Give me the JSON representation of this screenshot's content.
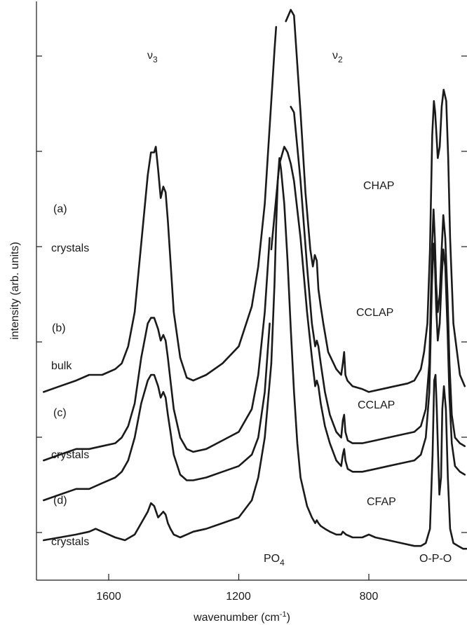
{
  "chart_data": {
    "type": "line",
    "xlabel": "wavenumber (cm-1)",
    "ylabel": "intensity (arb. units)",
    "xlim": [
      1800,
      500
    ],
    "x_reversed": true,
    "ylim": [
      0,
      1
    ],
    "x_ticks": [
      1600,
      1200,
      800
    ],
    "y_ticks_unlabeled": 6,
    "grid": false,
    "series": [
      {
        "name": "CHAP",
        "label": "(a)",
        "note": "crystals",
        "x": [
          1800,
          1750,
          1700,
          1660,
          1620,
          1580,
          1560,
          1540,
          1520,
          1500,
          1480,
          1470,
          1460,
          1455,
          1448,
          1440,
          1432,
          1425,
          1418,
          1410,
          1400,
          1380,
          1360,
          1340,
          1300,
          1250,
          1200,
          1160,
          1140,
          1120,
          1100,
          1090,
          1085
        ],
        "y": [
          0.33,
          0.34,
          0.35,
          0.36,
          0.36,
          0.37,
          0.38,
          0.41,
          0.47,
          0.59,
          0.71,
          0.75,
          0.75,
          0.76,
          0.72,
          0.67,
          0.69,
          0.68,
          0.63,
          0.56,
          0.47,
          0.39,
          0.355,
          0.35,
          0.36,
          0.38,
          0.41,
          0.48,
          0.55,
          0.66,
          0.84,
          0.93,
          0.97
        ]
      },
      {
        "name": "CCLAP",
        "label": "(b)",
        "note": "bulk",
        "x": [
          1800,
          1750,
          1700,
          1660,
          1620,
          1580,
          1560,
          1540,
          1520,
          1500,
          1480,
          1470,
          1460,
          1448,
          1440,
          1432,
          1425,
          1418,
          1410,
          1400,
          1380,
          1360,
          1340,
          1300,
          1250,
          1200,
          1160,
          1140,
          1120,
          1105
        ],
        "y": [
          0.21,
          0.22,
          0.23,
          0.23,
          0.235,
          0.24,
          0.25,
          0.27,
          0.31,
          0.39,
          0.45,
          0.46,
          0.46,
          0.44,
          0.42,
          0.43,
          0.42,
          0.39,
          0.35,
          0.3,
          0.25,
          0.23,
          0.225,
          0.23,
          0.245,
          0.26,
          0.3,
          0.36,
          0.47,
          0.6
        ]
      },
      {
        "name": "CCLAP",
        "label": "(c)",
        "note": "crystals",
        "x": [
          1800,
          1750,
          1700,
          1660,
          1620,
          1580,
          1560,
          1540,
          1520,
          1500,
          1480,
          1470,
          1460,
          1448,
          1440,
          1432,
          1425,
          1418,
          1410,
          1400,
          1380,
          1360,
          1340,
          1300,
          1250,
          1200,
          1160,
          1140,
          1120,
          1105
        ],
        "y": [
          0.14,
          0.15,
          0.16,
          0.16,
          0.17,
          0.18,
          0.19,
          0.21,
          0.25,
          0.31,
          0.35,
          0.36,
          0.36,
          0.34,
          0.32,
          0.33,
          0.32,
          0.29,
          0.26,
          0.22,
          0.185,
          0.175,
          0.175,
          0.18,
          0.19,
          0.2,
          0.22,
          0.25,
          0.33,
          0.45
        ]
      },
      {
        "name": "CFAP",
        "label": "(d)",
        "note": "crystals",
        "x": [
          1800,
          1750,
          1700,
          1660,
          1640,
          1620,
          1580,
          1550,
          1520,
          1500,
          1480,
          1470,
          1460,
          1448,
          1440,
          1432,
          1425,
          1418,
          1410,
          1400,
          1380,
          1360,
          1340,
          1300,
          1250,
          1200,
          1160,
          1140,
          1120,
          1100
        ],
        "y": [
          0.07,
          0.075,
          0.08,
          0.085,
          0.09,
          0.085,
          0.075,
          0.07,
          0.08,
          0.1,
          0.12,
          0.135,
          0.13,
          0.11,
          0.115,
          0.12,
          0.115,
          0.1,
          0.09,
          0.08,
          0.075,
          0.08,
          0.085,
          0.09,
          0.1,
          0.11,
          0.14,
          0.18,
          0.25,
          0.38
        ]
      },
      {
        "name": "PO4 band (a)",
        "x": [
          1055,
          1040,
          1030,
          1010,
          995,
          980,
          972,
          966,
          960,
          955,
          948,
          940,
          925,
          900,
          885,
          880,
          876,
          872,
          866,
          850,
          820,
          800,
          760,
          720,
          680,
          660,
          650,
          640,
          630,
          620,
          612,
          605,
          600,
          596,
          592,
          588,
          582,
          576,
          570,
          562,
          556,
          550,
          540,
          520,
          505
        ],
        "y": [
          0.98,
          1.0,
          0.99,
          0.82,
          0.68,
          0.58,
          0.55,
          0.57,
          0.56,
          0.51,
          0.48,
          0.45,
          0.4,
          0.37,
          0.36,
          0.38,
          0.4,
          0.36,
          0.35,
          0.34,
          0.335,
          0.33,
          0.335,
          0.34,
          0.345,
          0.35,
          0.36,
          0.37,
          0.4,
          0.45,
          0.58,
          0.78,
          0.84,
          0.82,
          0.78,
          0.74,
          0.76,
          0.83,
          0.86,
          0.84,
          0.74,
          0.6,
          0.45,
          0.36,
          0.34
        ]
      },
      {
        "name": "PO4 band (b)",
        "x": [
          1040,
          1030,
          1010,
          990,
          975,
          965,
          960,
          955,
          948,
          935,
          920,
          900,
          885,
          880,
          876,
          872,
          865,
          850,
          820,
          780,
          740,
          700,
          660,
          640,
          625,
          614,
          606,
          601,
          597,
          593,
          588,
          582,
          576,
          571,
          565,
          558,
          552,
          545,
          535,
          520,
          505
        ],
        "y": [
          0.83,
          0.82,
          0.7,
          0.55,
          0.45,
          0.41,
          0.42,
          0.41,
          0.38,
          0.33,
          0.29,
          0.26,
          0.25,
          0.28,
          0.29,
          0.26,
          0.245,
          0.24,
          0.24,
          0.245,
          0.25,
          0.255,
          0.26,
          0.27,
          0.3,
          0.38,
          0.58,
          0.65,
          0.6,
          0.52,
          0.47,
          0.5,
          0.58,
          0.64,
          0.6,
          0.5,
          0.38,
          0.29,
          0.25,
          0.24,
          0.235
        ]
      },
      {
        "name": "PO4 band (c)",
        "x": [
          1100,
          1090,
          1080,
          1075,
          1070,
          1060,
          1050,
          1040,
          1030,
          1010,
          990,
          975,
          965,
          960,
          955,
          948,
          935,
          920,
          900,
          885,
          880,
          876,
          872,
          865,
          850,
          820,
          780,
          740,
          700,
          660,
          640,
          625,
          614,
          606,
          601,
          597,
          593,
          588,
          582,
          576,
          571,
          565,
          558,
          552,
          545,
          535,
          520,
          505
        ],
        "y": [
          0.58,
          0.64,
          0.7,
          0.73,
          0.74,
          0.76,
          0.75,
          0.73,
          0.7,
          0.6,
          0.47,
          0.39,
          0.34,
          0.35,
          0.34,
          0.31,
          0.27,
          0.24,
          0.21,
          0.2,
          0.22,
          0.23,
          0.21,
          0.195,
          0.19,
          0.19,
          0.195,
          0.2,
          0.205,
          0.21,
          0.22,
          0.25,
          0.33,
          0.52,
          0.59,
          0.56,
          0.48,
          0.42,
          0.45,
          0.53,
          0.58,
          0.55,
          0.44,
          0.32,
          0.24,
          0.2,
          0.19,
          0.185
        ]
      },
      {
        "name": "PO4 band (d)",
        "x": [
          1100,
          1090,
          1085,
          1080,
          1075,
          1070,
          1060,
          1050,
          1040,
          1030,
          1020,
          1010,
          990,
          975,
          965,
          960,
          955,
          948,
          935,
          920,
          900,
          885,
          880,
          870,
          850,
          820,
          800,
          780,
          740,
          700,
          660,
          640,
          625,
          612,
          604,
          599,
          595,
          591,
          587,
          583,
          578,
          574,
          569,
          563,
          557,
          550,
          540,
          525,
          510,
          500
        ],
        "y": [
          0.38,
          0.52,
          0.62,
          0.7,
          0.74,
          0.72,
          0.66,
          0.56,
          0.44,
          0.33,
          0.24,
          0.18,
          0.13,
          0.11,
          0.1,
          0.105,
          0.1,
          0.095,
          0.09,
          0.085,
          0.08,
          0.08,
          0.085,
          0.08,
          0.075,
          0.075,
          0.08,
          0.075,
          0.07,
          0.065,
          0.06,
          0.06,
          0.065,
          0.09,
          0.22,
          0.35,
          0.36,
          0.3,
          0.22,
          0.15,
          0.18,
          0.3,
          0.34,
          0.3,
          0.18,
          0.09,
          0.065,
          0.06,
          0.055,
          0.055
        ]
      }
    ],
    "annotations": {
      "nu3": "ν",
      "nu3_sub": "3",
      "nu2": "ν",
      "nu2_sub": "2",
      "po4": "PO",
      "po4_sub": "4",
      "opo": "O-P-O",
      "crystals_a": "crystals",
      "bulk_b": "bulk",
      "crystals_c": "crystals",
      "crystals_d": "crystals",
      "label_a": "(a)",
      "label_b": "(b)",
      "label_c": "(c)",
      "label_d": "(d)",
      "sample_a": "CHAP",
      "sample_b": "CCLAP",
      "sample_c": "CCLAP",
      "sample_d": "CFAP"
    },
    "axis_text": {
      "ylabel": "intensity (arb. units)",
      "xlabel_main": "wavenumber (cm",
      "xlabel_sup": "-1",
      "xlabel_end": ")",
      "tick_1600": "1600",
      "tick_1200": "1200",
      "tick_800": "800"
    }
  }
}
